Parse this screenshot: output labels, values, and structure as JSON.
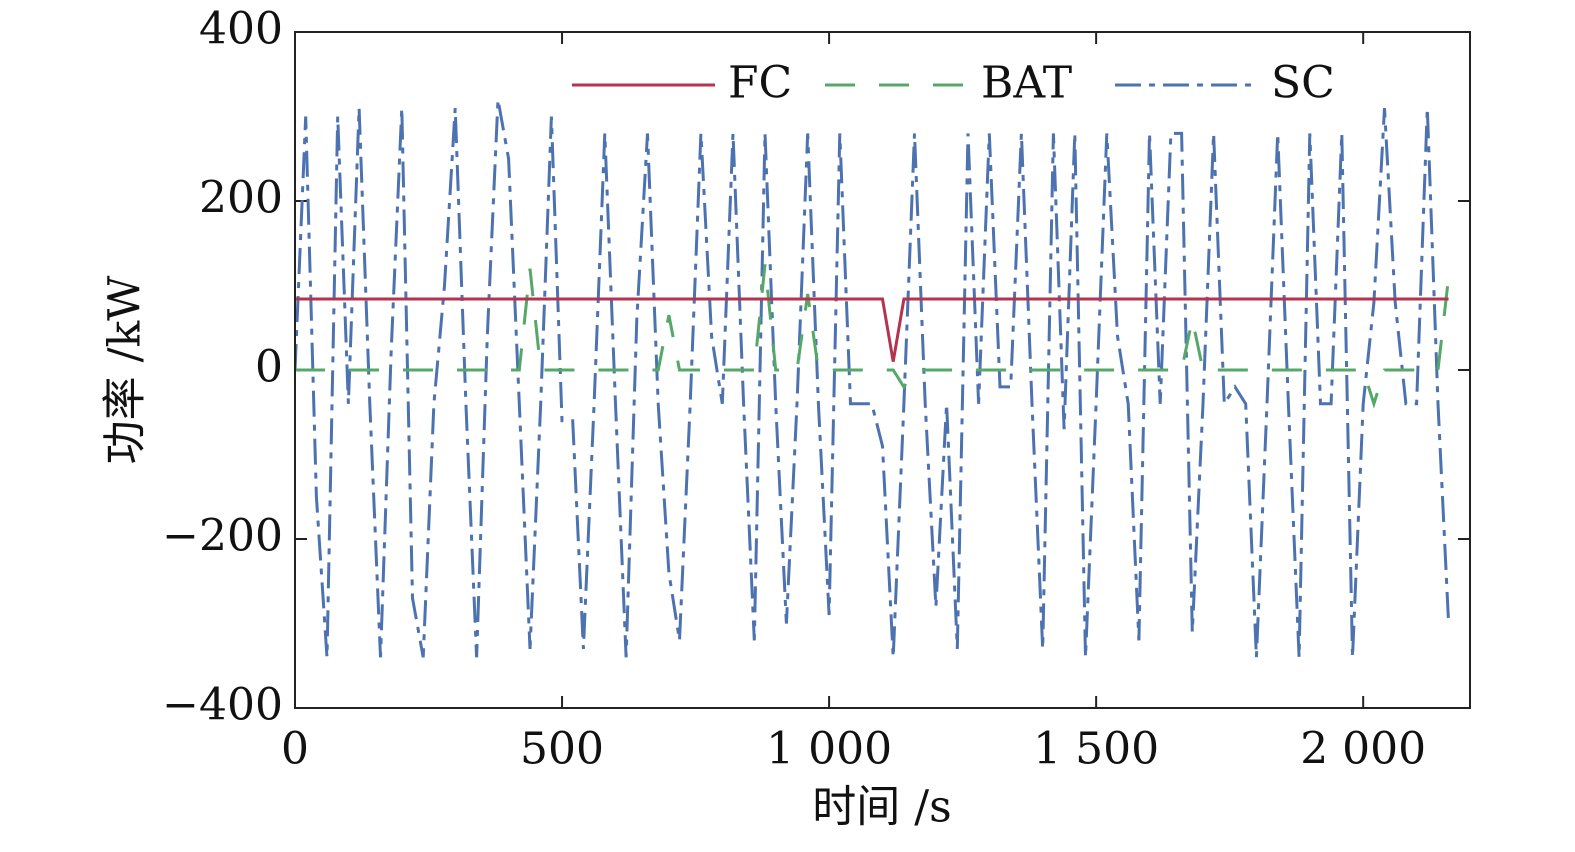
{
  "chart_data": {
    "type": "line",
    "xlabel": "时间 /s",
    "ylabel": "功率 /kW",
    "x": [
      0,
      20,
      40,
      60,
      80,
      100,
      120,
      140,
      160,
      180,
      200,
      220,
      240,
      260,
      280,
      300,
      320,
      340,
      360,
      380,
      400,
      420,
      440,
      460,
      480,
      500,
      520,
      540,
      560,
      580,
      600,
      620,
      640,
      660,
      680,
      700,
      720,
      740,
      760,
      780,
      800,
      820,
      840,
      860,
      880,
      900,
      920,
      940,
      960,
      980,
      1000,
      1020,
      1040,
      1060,
      1080,
      1100,
      1120,
      1140,
      1160,
      1180,
      1200,
      1220,
      1240,
      1260,
      1280,
      1300,
      1320,
      1340,
      1360,
      1380,
      1400,
      1420,
      1440,
      1460,
      1480,
      1500,
      1520,
      1540,
      1560,
      1580,
      1600,
      1620,
      1640,
      1660,
      1680,
      1700,
      1720,
      1740,
      1760,
      1780,
      1800,
      1820,
      1840,
      1860,
      1880,
      1900,
      1920,
      1940,
      1960,
      1980,
      2000,
      2020,
      2040,
      2060,
      2080,
      2100,
      2120,
      2140,
      2160
    ],
    "series": [
      {
        "name": "FC",
        "color": "#b5334f",
        "dash": "none",
        "values": [
          84,
          84,
          84,
          84,
          84,
          84,
          84,
          84,
          84,
          84,
          84,
          84,
          84,
          84,
          84,
          84,
          84,
          84,
          84,
          84,
          84,
          84,
          84,
          84,
          84,
          84,
          84,
          84,
          84,
          84,
          84,
          84,
          84,
          84,
          84,
          84,
          84,
          84,
          84,
          84,
          84,
          84,
          84,
          84,
          84,
          84,
          84,
          84,
          84,
          84,
          84,
          84,
          84,
          84,
          84,
          84,
          10,
          84,
          84,
          84,
          84,
          84,
          84,
          84,
          84,
          84,
          84,
          84,
          84,
          84,
          84,
          84,
          84,
          84,
          84,
          84,
          84,
          84,
          84,
          84,
          84,
          84,
          84,
          84,
          84,
          84,
          84,
          84,
          84,
          84,
          84,
          84,
          84,
          84,
          84,
          84,
          84,
          84,
          84,
          84,
          84,
          84,
          84,
          84,
          84,
          84,
          84,
          84,
          84
        ]
      },
      {
        "name": "BAT",
        "color": "#55a868",
        "dash": "30,24",
        "values": [
          0,
          0,
          0,
          0,
          0,
          0,
          0,
          0,
          0,
          0,
          0,
          0,
          0,
          0,
          0,
          0,
          0,
          0,
          0,
          0,
          0,
          0,
          120,
          0,
          0,
          0,
          0,
          0,
          0,
          0,
          0,
          0,
          0,
          0,
          0,
          65,
          0,
          0,
          0,
          0,
          0,
          0,
          0,
          0,
          125,
          0,
          0,
          0,
          90,
          0,
          0,
          0,
          0,
          0,
          0,
          0,
          0,
          -20,
          0,
          0,
          0,
          0,
          0,
          0,
          0,
          0,
          0,
          0,
          0,
          0,
          0,
          0,
          0,
          0,
          0,
          0,
          0,
          0,
          0,
          0,
          0,
          0,
          0,
          0,
          60,
          0,
          0,
          0,
          0,
          0,
          0,
          0,
          0,
          0,
          0,
          0,
          0,
          0,
          0,
          0,
          0,
          -40,
          0,
          0,
          0,
          0,
          0,
          0,
          110
        ]
      },
      {
        "name": "SC",
        "color": "#4c72b0",
        "dash": "26,8,6,8",
        "values": [
          0,
          300,
          -150,
          -340,
          300,
          -40,
          310,
          -40,
          -340,
          20,
          310,
          -270,
          -340,
          -40,
          100,
          310,
          -40,
          -340,
          40,
          320,
          250,
          -40,
          -330,
          -40,
          300,
          -60,
          -60,
          -330,
          -40,
          280,
          -40,
          -340,
          60,
          280,
          -40,
          -240,
          -320,
          -40,
          280,
          40,
          -40,
          280,
          -40,
          -320,
          280,
          -40,
          -300,
          -40,
          280,
          -40,
          -290,
          280,
          -40,
          -40,
          -40,
          -90,
          -340,
          -40,
          280,
          -40,
          -280,
          -40,
          -330,
          280,
          -40,
          280,
          -20,
          -20,
          280,
          -40,
          -330,
          280,
          -70,
          280,
          -340,
          -40,
          280,
          40,
          -40,
          -320,
          280,
          -40,
          280,
          280,
          -310,
          -40,
          280,
          -40,
          -20,
          -40,
          -340,
          -40,
          280,
          -40,
          -340,
          280,
          -40,
          -40,
          280,
          -340,
          -40,
          80,
          310,
          80,
          -40,
          -40,
          310,
          -40,
          -300
        ]
      }
    ],
    "xlim": [
      0,
      2200
    ],
    "xticks": [
      0,
      500,
      {
        "value": 1000,
        "label": "1 000"
      },
      {
        "value": 1500,
        "label": "1 500"
      },
      {
        "value": 2000,
        "label": "2 000"
      }
    ],
    "ylim": [
      -400,
      400
    ],
    "yticks": [
      {
        "value": -400,
        "label": "−400"
      },
      {
        "value": -200,
        "label": "−200"
      },
      0,
      200,
      400
    ],
    "grid": false,
    "legend": "upper right"
  }
}
